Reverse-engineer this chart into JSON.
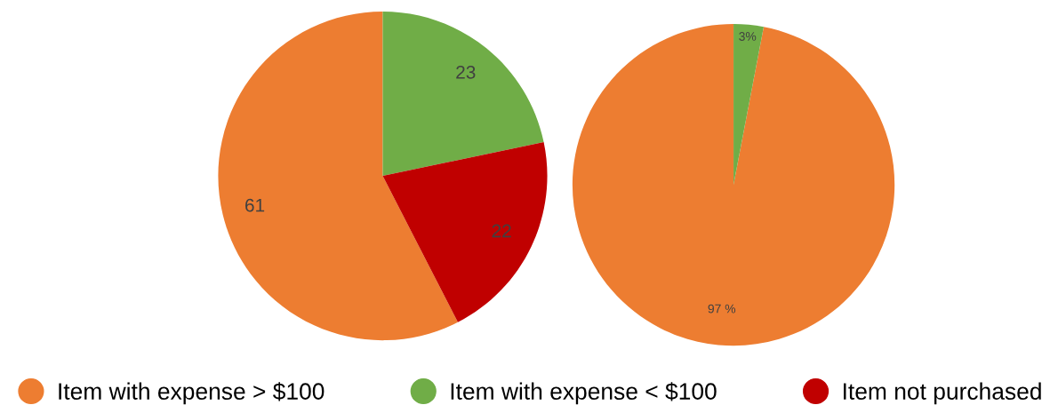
{
  "chart_data": [
    {
      "type": "pie",
      "categories": [
        "Item with expense > $100",
        "Item with expense < $100",
        "Item not purchased"
      ],
      "values": [
        61,
        23,
        22
      ],
      "colors": [
        "#ed7d31",
        "#70ad47",
        "#c00000"
      ],
      "data_labels": true,
      "legend": "bottom"
    },
    {
      "type": "pie",
      "categories": [
        null,
        null
      ],
      "values": [
        97,
        3
      ],
      "colors": [
        "#ed7d31",
        "#70ad47"
      ],
      "value_labels": [
        "97 %",
        "3%"
      ]
    }
  ]
}
